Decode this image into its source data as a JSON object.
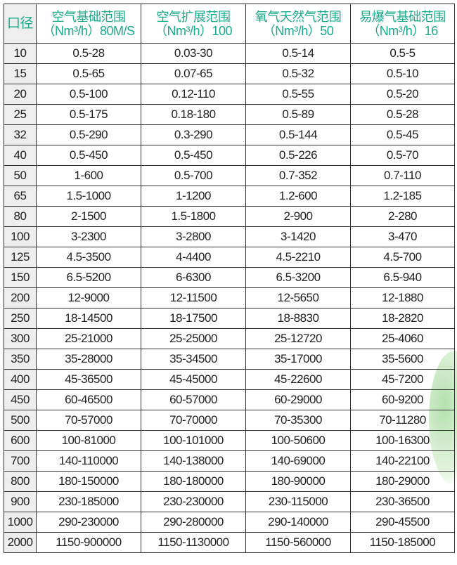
{
  "header": [
    {
      "line1": "口径",
      "line2": ""
    },
    {
      "line1": "空气基础范围",
      "line2": "（Nm³/h）80M/S"
    },
    {
      "line1": "空气扩展范围",
      "line2": "（Nm³/h）100"
    },
    {
      "line1": "氧气天然气范围",
      "line2": "（Nm³/h）50"
    },
    {
      "line1": "易爆气基础范围",
      "line2": "（Nm³/h）16"
    }
  ],
  "rows": [
    [
      "10",
      "0.5-28",
      "0.03-30",
      "0.5-14",
      "0.5-5"
    ],
    [
      "15",
      "0.5-65",
      "0.07-65",
      "0.5-32",
      "0.5-10"
    ],
    [
      "20",
      "0.5-100",
      "0.12-110",
      "0.5-55",
      "0.5-20"
    ],
    [
      "25",
      "0.5-175",
      "0.18-180",
      "0.5-89",
      "0.5-28"
    ],
    [
      "32",
      "0.5-290",
      "0.3-290",
      "0.5-144",
      "0.5-45"
    ],
    [
      "40",
      "0.5-450",
      "0.5-450",
      "0.5-226",
      "0.5-70"
    ],
    [
      "50",
      "1-600",
      "0.5-700",
      "0.7-352",
      "0.7-110"
    ],
    [
      "65",
      "1.5-1000",
      "1-1200",
      "1.2-600",
      "1.2-185"
    ],
    [
      "80",
      "2-1500",
      "1.5-1800",
      "2-900",
      "2-280"
    ],
    [
      "100",
      "3-2300",
      "3-2800",
      "3-1420",
      "3-470"
    ],
    [
      "125",
      "4.5-3500",
      "4-4400",
      "4.5-2210",
      "4.5-700"
    ],
    [
      "150",
      "6.5-5200",
      "6-6300",
      "6.5-3200",
      "6.5-940"
    ],
    [
      "200",
      "12-9000",
      "12-11500",
      "12-5650",
      "12-1880"
    ],
    [
      "250",
      "18-14500",
      "18-17500",
      "18-8830",
      "18-2820"
    ],
    [
      "300",
      "25-21000",
      "25-25000",
      "25-12720",
      "25-4060"
    ],
    [
      "350",
      "35-28000",
      "35-34500",
      "35-17000",
      "35-5600"
    ],
    [
      "400",
      "45-36500",
      "45-45000",
      "45-22600",
      "45-7200"
    ],
    [
      "450",
      "60-46500",
      "60-57000",
      "60-29000",
      "60-9200"
    ],
    [
      "500",
      "70-57000",
      "70-70000",
      "70-35300",
      "70-11280"
    ],
    [
      "600",
      "100-81000",
      "100-101000",
      "100-50600",
      "100-16300"
    ],
    [
      "700",
      "140-110000",
      "140-138000",
      "140-69000",
      "140-22100"
    ],
    [
      "800",
      "180-150000",
      "180-180000",
      "180-90000",
      "180-29000"
    ],
    [
      "900",
      "230-185000",
      "230-230000",
      "230-115000",
      "230-36500"
    ],
    [
      "1000",
      "290-230000",
      "290-280000",
      "290-140000",
      "290-45500"
    ],
    [
      "2000",
      "1150-900000",
      "1150-1130000",
      "1150-560000",
      "1150-185000"
    ]
  ],
  "colors": {
    "header_text": "#1aaa8a",
    "first_column_bg": "#eeeeee",
    "border": "#333333"
  }
}
